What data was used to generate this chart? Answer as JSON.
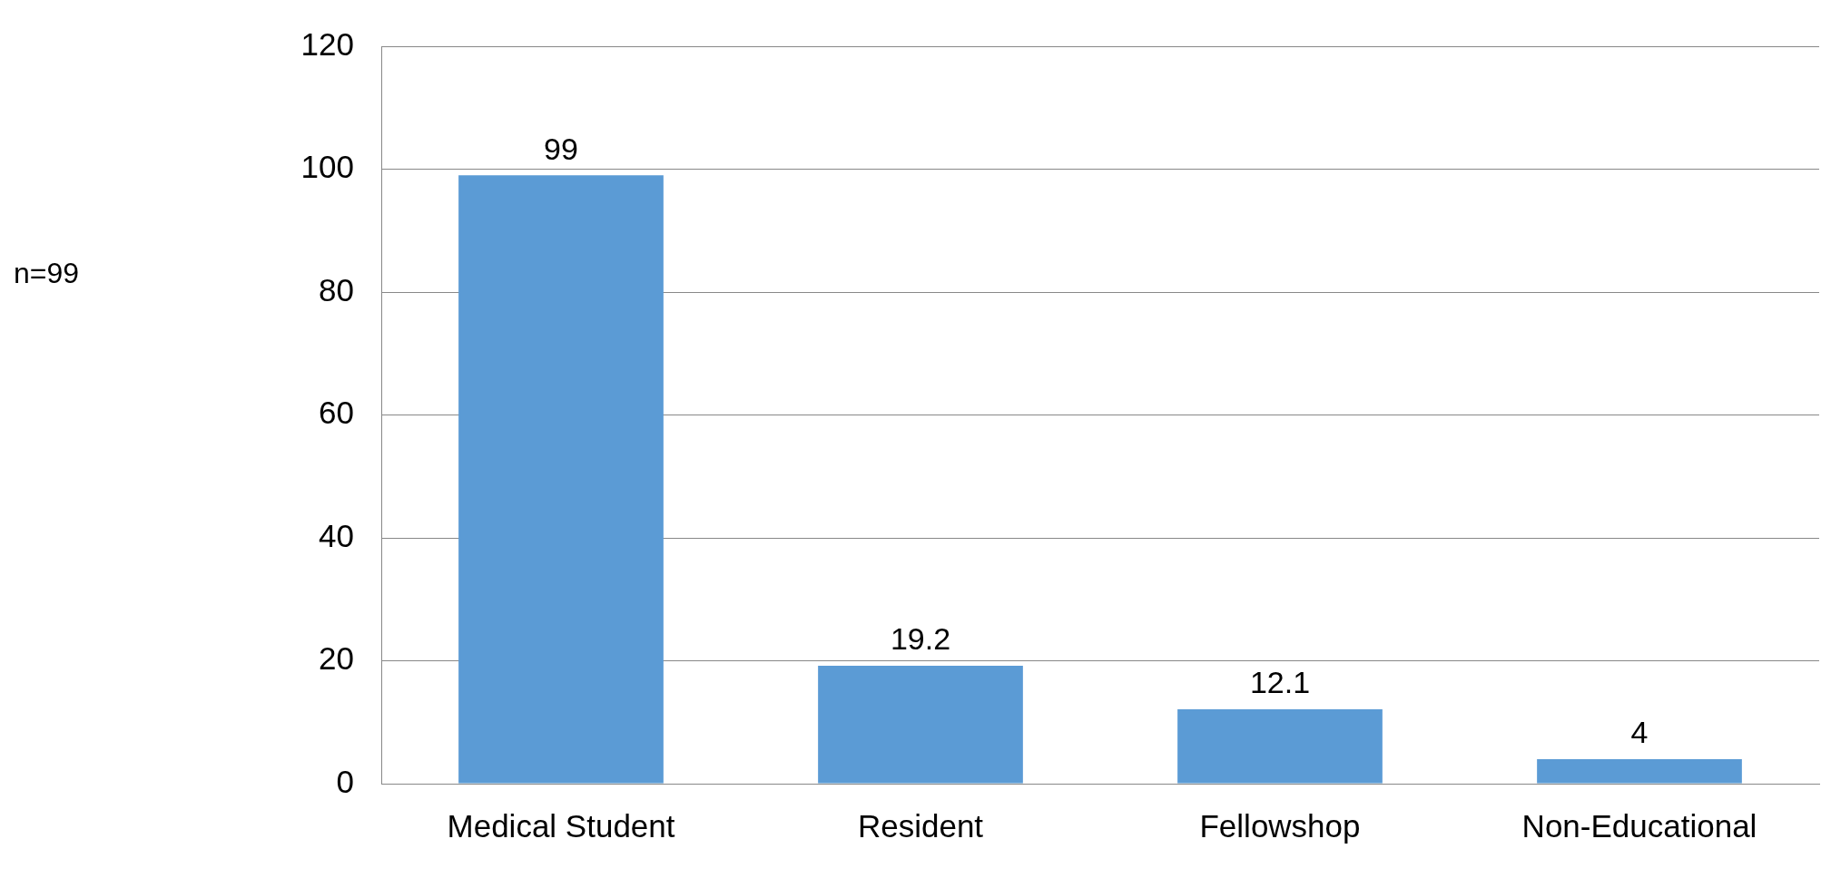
{
  "chart_data": {
    "type": "bar",
    "annotations": [
      "n=99"
    ],
    "categories": [
      "Medical Student",
      "Resident",
      "Fellowshop",
      "Non-Educational"
    ],
    "values": [
      99,
      19.2,
      12.1,
      4
    ],
    "color": "#5b9bd5",
    "ylim": [
      0,
      120
    ],
    "yticks": [
      0,
      20,
      40,
      60,
      80,
      100,
      120
    ],
    "grid": "y",
    "data_labels": true,
    "legend": false
  }
}
